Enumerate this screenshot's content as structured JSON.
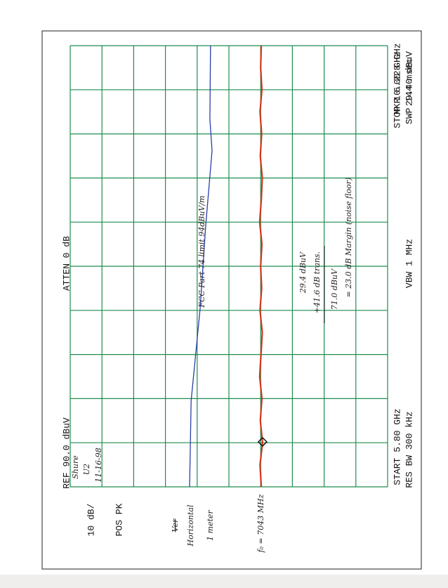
{
  "chart_data": {
    "type": "line",
    "header": {
      "ref": "REF 90.0 dBuV",
      "atten": "ATTEN 0 dB",
      "marker_freq": "MKR 6.228 GHz",
      "marker_level": "29.40 dBuV",
      "scale": "10 dB/",
      "detector": "POS PK",
      "start": "START 5.80 GHz",
      "stop": "STOP 10.00 GHz",
      "rbw": "RES BW 300 kHz",
      "vbw": "VBW 1 MHz",
      "sweep": "SWP 144 msec"
    },
    "notes": {
      "device": "Shure",
      "model": "U2",
      "date": "11-16-98",
      "struck": "Ver",
      "polarization": "Horizontal",
      "distance": "1 meter",
      "frequency": "f₀ = 7043 MHz",
      "calc_1": "29.4 dBuV",
      "calc_2": "+41.6 dB trans.",
      "calc_3": "71.0 dBuV",
      "calc_4": "= 23.0 dB Margin (noise floor)"
    },
    "xlim": [
      5.8,
      10.0
    ],
    "ylim": [
      -10,
      90
    ],
    "grid": true,
    "grid_color": "#1f8c4e",
    "marker": {
      "x": 6.228,
      "y": 29.4
    },
    "series": [
      {
        "color": "#d0361a",
        "x": [
          5.8,
          6.01,
          6.22,
          6.43,
          6.64,
          6.85,
          7.06,
          7.27,
          7.48,
          7.69,
          7.9,
          8.11,
          8.32,
          8.53,
          8.74,
          8.95,
          9.16,
          9.37,
          9.58,
          9.79,
          10.0
        ],
        "values": [
          29.8,
          30.2,
          29.4,
          30.1,
          29.6,
          30.3,
          29.9,
          29.5,
          30.2,
          29.7,
          30.0,
          29.6,
          30.3,
          29.8,
          29.5,
          30.1,
          29.7,
          30.2,
          29.6,
          30.0,
          29.8
        ]
      },
      {
        "name": "FCC Part 74 limit 94dBuV/m",
        "color": "#2a3fa8",
        "x": [
          5.8,
          6.62,
          7.49,
          8.29,
          9.0,
          9.3,
          10.0
        ],
        "values": [
          52.4,
          51.9,
          49.1,
          47.3,
          45.3,
          46.0,
          45.8
        ]
      }
    ]
  }
}
